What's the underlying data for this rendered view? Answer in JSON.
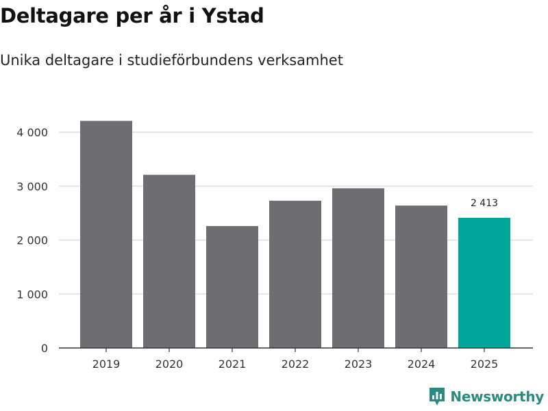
{
  "chart_data": {
    "type": "bar",
    "title": "Deltagare per år i Ystad",
    "subtitle": "Unika deltagare i studieförbundens verksamhet",
    "categories": [
      "2019",
      "2020",
      "2021",
      "2022",
      "2023",
      "2024",
      "2025"
    ],
    "values": [
      4210,
      3210,
      2260,
      2730,
      2960,
      2640,
      2413
    ],
    "highlight_index": 6,
    "data_labels": [
      {
        "index": 6,
        "text": "2 413"
      }
    ],
    "y_ticks": [
      0,
      1000,
      2000,
      3000,
      4000
    ],
    "y_tick_labels": [
      "0",
      "1 000",
      "2 000",
      "3 000",
      "4 000"
    ],
    "ylim": [
      0,
      4200
    ],
    "xlabel": "",
    "ylabel": "",
    "grid": true,
    "colors": {
      "bar": "#6e6d72",
      "highlight": "#00a69a",
      "grid": "#dddddd",
      "axis": "#333333"
    }
  },
  "brand": {
    "name": "Newsworthy",
    "icon": "newsworthy-logo-icon",
    "color": "#2a8a80"
  }
}
